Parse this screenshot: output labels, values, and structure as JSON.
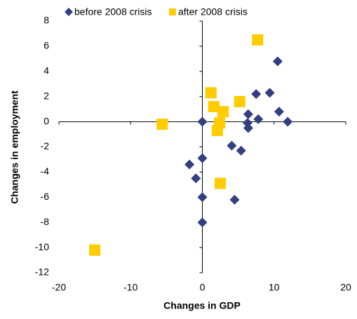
{
  "chart_data": {
    "type": "scatter",
    "xlabel": "Changes in GDP",
    "ylabel": "Changes in employment",
    "xlim": [
      -20,
      20
    ],
    "xticks": [
      -20,
      -10,
      0,
      10,
      20
    ],
    "ylim": [
      -12,
      8
    ],
    "yticks": [
      -12,
      -10,
      -8,
      -6,
      -4,
      -2,
      0,
      2,
      4,
      6,
      8
    ],
    "series": [
      {
        "name": "before 2008 crisis",
        "color": "#333f7f",
        "marker": "diamond",
        "x": [
          0,
          10.5,
          7.5,
          9.4,
          10.7,
          11.9,
          6.4,
          7.8,
          6.3,
          6.4,
          4.1,
          5.4,
          0,
          -1.8,
          -0.9,
          0,
          4.5,
          0
        ],
        "values": [
          0,
          4.8,
          2.2,
          2.3,
          0.8,
          0,
          0.6,
          0.2,
          -0.1,
          -0.5,
          -1.9,
          -2.3,
          -2.9,
          -3.4,
          -4.5,
          -6.0,
          -6.2,
          -8.0
        ]
      },
      {
        "name": "after 2008 crisis",
        "color": "#ffcc00",
        "marker": "square",
        "x": [
          7.7,
          1.2,
          5.2,
          1.6,
          2.9,
          2.4,
          2.1,
          -5.6,
          2.5,
          -15.0
        ],
        "values": [
          6.5,
          2.3,
          1.6,
          1.2,
          0.8,
          -0.1,
          -0.7,
          -0.2,
          -4.9,
          -10.2
        ]
      }
    ]
  }
}
